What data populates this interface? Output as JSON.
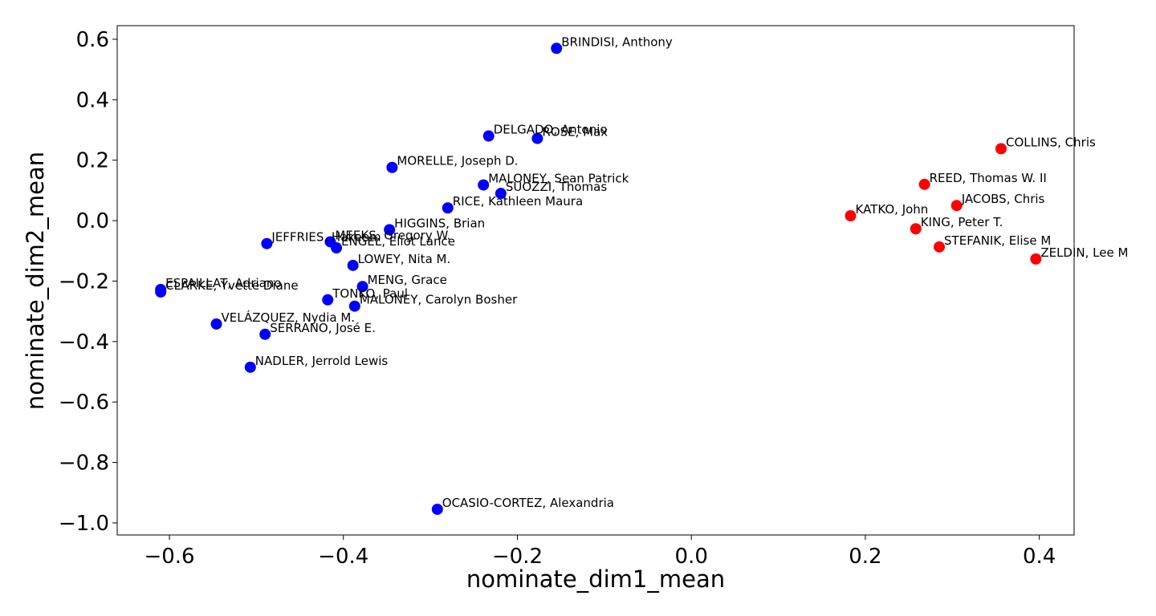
{
  "chart_data": {
    "type": "scatter",
    "title": "",
    "xlabel": "nominate_dim1_mean",
    "ylabel": "nominate_dim2_mean",
    "xlim": [
      -0.66,
      0.44
    ],
    "ylim": [
      -1.04,
      0.645
    ],
    "xticks": [
      -0.6,
      -0.4,
      -0.2,
      0.0,
      0.2,
      0.4
    ],
    "xtick_labels": [
      "−0.6",
      "−0.4",
      "−0.2",
      "0.0",
      "0.2",
      "0.4"
    ],
    "yticks": [
      0.6,
      0.4,
      0.2,
      0.0,
      -0.2,
      -0.4,
      -0.6,
      -0.8,
      -1.0
    ],
    "ytick_labels": [
      "0.6",
      "0.4",
      "0.2",
      "0.0",
      "−0.2",
      "−0.4",
      "−0.6",
      "−0.8",
      "−1.0"
    ],
    "grid": false,
    "legend": "none",
    "colors": {
      "democrat": "#0000ff",
      "republican": "#ff0000"
    },
    "points": [
      {
        "label": "BRINDISI, Anthony",
        "x": -0.155,
        "y": 0.57,
        "color": "#0000ff"
      },
      {
        "label": "DELGADO, Antonio",
        "x": -0.233,
        "y": 0.28,
        "color": "#0000ff"
      },
      {
        "label": "ROSE, Max",
        "x": -0.177,
        "y": 0.272,
        "color": "#0000ff"
      },
      {
        "label": "MORELLE, Joseph D.",
        "x": -0.344,
        "y": 0.176,
        "color": "#0000ff"
      },
      {
        "label": "MALONEY, Sean Patrick",
        "x": -0.239,
        "y": 0.118,
        "color": "#0000ff"
      },
      {
        "label": "SUOZZI, Thomas",
        "x": -0.219,
        "y": 0.09,
        "color": "#0000ff"
      },
      {
        "label": "RICE, Kathleen Maura",
        "x": -0.28,
        "y": 0.042,
        "color": "#0000ff"
      },
      {
        "label": "HIGGINS, Brian",
        "x": -0.347,
        "y": -0.03,
        "color": "#0000ff"
      },
      {
        "label": "JEFFRIES, Hakeem",
        "x": -0.488,
        "y": -0.076,
        "color": "#0000ff"
      },
      {
        "label": "MEEKS, Gregory W.",
        "x": -0.415,
        "y": -0.07,
        "color": "#0000ff"
      },
      {
        "label": "ENGEL, Eliot Lance",
        "x": -0.408,
        "y": -0.09,
        "color": "#0000ff"
      },
      {
        "label": "LOWEY, Nita M.",
        "x": -0.389,
        "y": -0.148,
        "color": "#0000ff"
      },
      {
        "label": "MENG, Grace",
        "x": -0.378,
        "y": -0.218,
        "color": "#0000ff"
      },
      {
        "label": "ESPAILLAT, Adriano",
        "x": -0.61,
        "y": -0.228,
        "color": "#0000ff"
      },
      {
        "label": "CLARKE, Yvette Diane",
        "x": -0.61,
        "y": -0.236,
        "color": "#0000ff"
      },
      {
        "label": "TONKO, Paul",
        "x": -0.418,
        "y": -0.262,
        "color": "#0000ff"
      },
      {
        "label": "MALONEY, Carolyn Bosher",
        "x": -0.387,
        "y": -0.283,
        "color": "#0000ff"
      },
      {
        "label": "VELÁZQUEZ, Nydia M.",
        "x": -0.546,
        "y": -0.342,
        "color": "#0000ff"
      },
      {
        "label": "SERRANO, José E.",
        "x": -0.49,
        "y": -0.376,
        "color": "#0000ff"
      },
      {
        "label": "NADLER, Jerrold Lewis",
        "x": -0.507,
        "y": -0.485,
        "color": "#0000ff"
      },
      {
        "label": "OCASIO-CORTEZ, Alexandria",
        "x": -0.292,
        "y": -0.955,
        "color": "#0000ff"
      },
      {
        "label": "COLLINS, Chris",
        "x": 0.356,
        "y": 0.238,
        "color": "#ff0000"
      },
      {
        "label": "REED, Thomas W. II",
        "x": 0.268,
        "y": 0.12,
        "color": "#ff0000"
      },
      {
        "label": "JACOBS, Chris",
        "x": 0.305,
        "y": 0.05,
        "color": "#ff0000"
      },
      {
        "label": "KATKO, John",
        "x": 0.183,
        "y": 0.016,
        "color": "#ff0000"
      },
      {
        "label": "KING, Peter T.",
        "x": 0.258,
        "y": -0.027,
        "color": "#ff0000"
      },
      {
        "label": "STEFANIK, Elise M",
        "x": 0.285,
        "y": -0.087,
        "color": "#ff0000"
      },
      {
        "label": "ZELDIN, Lee M",
        "x": 0.396,
        "y": -0.127,
        "color": "#ff0000"
      }
    ]
  }
}
